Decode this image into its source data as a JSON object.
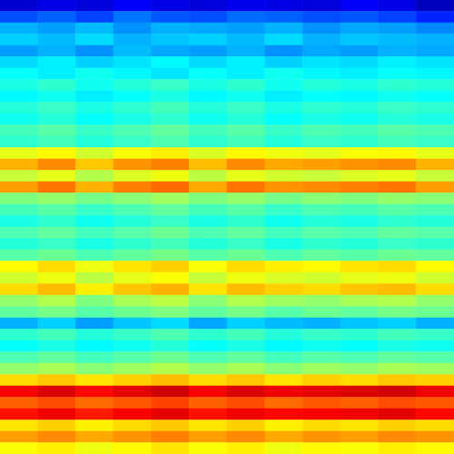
{
  "chart_data": {
    "type": "heatmap",
    "tick_labels": false,
    "zlim": [
      0,
      100
    ],
    "cells": [
      [
        8,
        10,
        9,
        12,
        10,
        9,
        11,
        10,
        9,
        12,
        10,
        6
      ],
      [
        20,
        22,
        19,
        24,
        21,
        20,
        23,
        22,
        20,
        21,
        19,
        16
      ],
      [
        30,
        28,
        31,
        27,
        30,
        29,
        28,
        30,
        27,
        29,
        28,
        26
      ],
      [
        33,
        31,
        34,
        30,
        32,
        33,
        31,
        34,
        30,
        32,
        31,
        30
      ],
      [
        28,
        30,
        27,
        31,
        29,
        28,
        30,
        27,
        29,
        28,
        30,
        29
      ],
      [
        34,
        36,
        33,
        35,
        37,
        34,
        36,
        33,
        35,
        34,
        36,
        35
      ],
      [
        38,
        36,
        39,
        37,
        35,
        38,
        36,
        39,
        37,
        36,
        38,
        37
      ],
      [
        40,
        42,
        39,
        41,
        43,
        40,
        42,
        39,
        41,
        40,
        42,
        41
      ],
      [
        37,
        39,
        36,
        38,
        40,
        37,
        39,
        36,
        38,
        37,
        39,
        38
      ],
      [
        41,
        43,
        40,
        42,
        44,
        41,
        43,
        40,
        42,
        41,
        43,
        42
      ],
      [
        39,
        41,
        38,
        40,
        42,
        39,
        41,
        38,
        40,
        39,
        41,
        40
      ],
      [
        44,
        46,
        43,
        45,
        47,
        44,
        46,
        43,
        45,
        44,
        46,
        45
      ],
      [
        42,
        44,
        41,
        43,
        45,
        42,
        44,
        41,
        43,
        42,
        44,
        43
      ],
      [
        60,
        63,
        58,
        62,
        64,
        59,
        63,
        61,
        60,
        62,
        63,
        60
      ],
      [
        70,
        74,
        68,
        73,
        75,
        69,
        74,
        71,
        72,
        73,
        74,
        70
      ],
      [
        57,
        60,
        55,
        59,
        61,
        56,
        60,
        58,
        57,
        59,
        60,
        57
      ],
      [
        72,
        76,
        70,
        75,
        77,
        71,
        76,
        73,
        74,
        75,
        76,
        72
      ],
      [
        50,
        52,
        49,
        51,
        53,
        50,
        52,
        49,
        51,
        50,
        52,
        51
      ],
      [
        44,
        46,
        43,
        45,
        47,
        44,
        46,
        43,
        45,
        44,
        46,
        45
      ],
      [
        40,
        42,
        39,
        41,
        43,
        40,
        42,
        39,
        41,
        40,
        42,
        41
      ],
      [
        45,
        47,
        44,
        46,
        48,
        45,
        47,
        44,
        46,
        45,
        47,
        46
      ],
      [
        41,
        43,
        40,
        42,
        44,
        41,
        43,
        40,
        42,
        41,
        43,
        42
      ],
      [
        46,
        48,
        45,
        47,
        49,
        46,
        48,
        45,
        47,
        46,
        48,
        47
      ],
      [
        63,
        66,
        61,
        65,
        67,
        62,
        66,
        64,
        63,
        65,
        66,
        63
      ],
      [
        58,
        61,
        56,
        60,
        62,
        57,
        61,
        59,
        58,
        60,
        61,
        58
      ],
      [
        66,
        69,
        64,
        68,
        70,
        65,
        69,
        67,
        66,
        68,
        69,
        66
      ],
      [
        52,
        55,
        50,
        54,
        56,
        51,
        55,
        53,
        52,
        54,
        55,
        52
      ],
      [
        47,
        49,
        46,
        48,
        50,
        47,
        49,
        46,
        48,
        47,
        49,
        48
      ],
      [
        30,
        33,
        28,
        32,
        34,
        29,
        33,
        31,
        30,
        32,
        33,
        30
      ],
      [
        42,
        44,
        41,
        43,
        45,
        42,
        44,
        41,
        43,
        42,
        44,
        43
      ],
      [
        38,
        40,
        37,
        39,
        41,
        38,
        40,
        37,
        39,
        38,
        40,
        39
      ],
      [
        45,
        47,
        44,
        46,
        48,
        45,
        47,
        44,
        46,
        45,
        47,
        46
      ],
      [
        52,
        54,
        51,
        53,
        55,
        52,
        54,
        51,
        53,
        52,
        54,
        53
      ],
      [
        66,
        68,
        65,
        67,
        69,
        66,
        68,
        65,
        67,
        66,
        68,
        67
      ],
      [
        88,
        91,
        87,
        90,
        92,
        88,
        91,
        89,
        90,
        91,
        92,
        89
      ],
      [
        78,
        80,
        77,
        79,
        81,
        78,
        80,
        77,
        79,
        78,
        80,
        79
      ],
      [
        86,
        89,
        85,
        88,
        90,
        86,
        89,
        87,
        88,
        89,
        90,
        87
      ],
      [
        65,
        67,
        64,
        66,
        68,
        65,
        67,
        64,
        66,
        65,
        67,
        66
      ],
      [
        72,
        74,
        71,
        73,
        75,
        72,
        74,
        71,
        73,
        72,
        74,
        73
      ],
      [
        62,
        64,
        61,
        63,
        65,
        62,
        64,
        61,
        63,
        62,
        64,
        63
      ]
    ]
  }
}
